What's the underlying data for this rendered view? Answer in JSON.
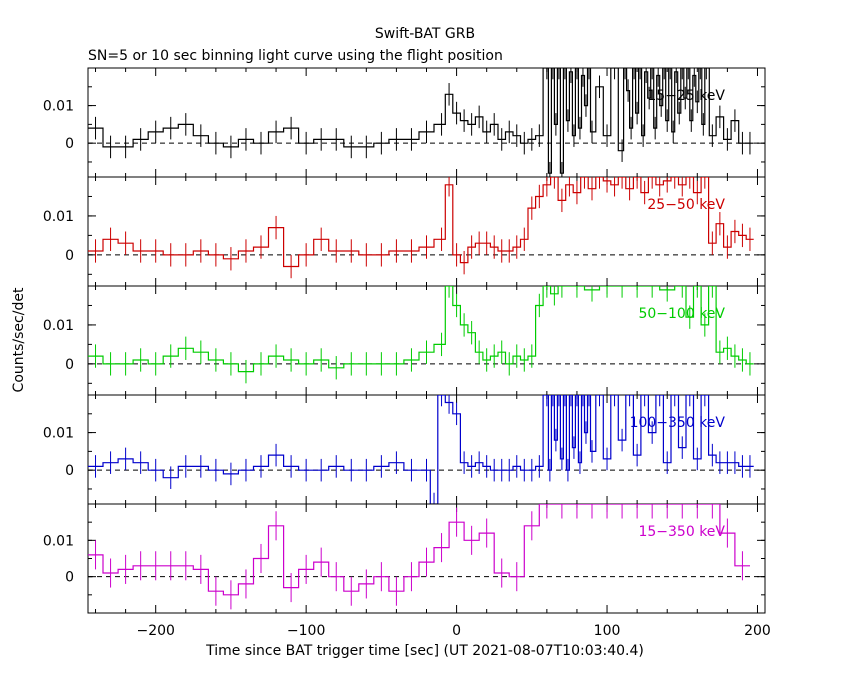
{
  "chart_data": {
    "type": "line",
    "title": "Swift-BAT GRB",
    "subtitle": "SN=5 or 10 sec binning light curve using the flight position",
    "xlabel": "Time since BAT trigger time [sec] (UT 2021-08-07T10:03:40.4)",
    "ylabel": "Counts/sec/det",
    "xlim": [
      -245,
      205
    ],
    "x_ticks": [
      -200,
      -100,
      0,
      100,
      200
    ],
    "x_tick_labels": [
      "−200",
      "−100",
      "0",
      "100",
      "200"
    ],
    "y_ticks": [
      0,
      0.01
    ],
    "y_tick_labels": [
      "0",
      "0.01"
    ],
    "panels": [
      {
        "label": "15−25 keV",
        "color": "#000000",
        "ylim": [
          -0.009,
          0.02
        ],
        "x": [
          -240,
          -230,
          -220,
          -210,
          -200,
          -190,
          -180,
          -170,
          -160,
          -150,
          -140,
          -130,
          -120,
          -110,
          -100,
          -90,
          -80,
          -70,
          -60,
          -50,
          -40,
          -30,
          -20,
          -10,
          -5,
          0,
          5,
          10,
          15,
          20,
          25,
          30,
          35,
          40,
          45,
          50,
          55,
          60,
          62,
          64,
          66,
          68,
          70,
          72,
          74,
          76,
          78,
          80,
          82,
          84,
          86,
          88,
          90,
          95,
          100,
          105,
          110,
          112,
          114,
          116,
          118,
          120,
          122,
          124,
          126,
          128,
          130,
          132,
          134,
          136,
          138,
          140,
          142,
          144,
          146,
          148,
          150,
          152,
          154,
          156,
          158,
          160,
          162,
          164,
          166,
          170,
          175,
          180,
          185,
          190,
          195
        ],
        "values": [
          0.004,
          -0.001,
          -0.001,
          0.001,
          0.003,
          0.004,
          0.005,
          0.002,
          0,
          -0.001,
          0.001,
          0,
          0.003,
          0.004,
          0,
          0.001,
          0.001,
          -0.001,
          -0.001,
          0,
          0.001,
          0.001,
          0.003,
          0.005,
          0.013,
          0.008,
          0.006,
          0.005,
          0.007,
          0.003,
          0.005,
          0.001,
          0.003,
          0.002,
          0,
          0.001,
          0.002,
          0.02,
          -0.008,
          0.02,
          0.005,
          0.02,
          -0.008,
          0.02,
          0.006,
          0.019,
          0.002,
          0.02,
          0.004,
          0.018,
          0.01,
          0.02,
          0.003,
          0.015,
          0.002,
          0.02,
          -0.002,
          0.02,
          0.014,
          0.004,
          0.02,
          0.008,
          0.02,
          0.002,
          0.019,
          0.012,
          0.02,
          0.004,
          0.018,
          0.01,
          0.02,
          0.006,
          0.02,
          0.003,
          0.019,
          0.008,
          0.02,
          0.012,
          0.02,
          0.006,
          0.018,
          0.011,
          0.02,
          0.005,
          0.02,
          0.002,
          0.007,
          0.001,
          0.006,
          0.0,
          0.0
        ],
        "err": 0.003
      },
      {
        "label": "25−50 keV",
        "color": "#cc0000",
        "ylim": [
          -0.008,
          0.02
        ],
        "x": [
          -240,
          -230,
          -220,
          -210,
          -200,
          -190,
          -180,
          -170,
          -160,
          -150,
          -140,
          -130,
          -120,
          -110,
          -100,
          -90,
          -80,
          -70,
          -60,
          -50,
          -40,
          -30,
          -20,
          -10,
          -5,
          0,
          5,
          10,
          15,
          20,
          25,
          30,
          35,
          40,
          45,
          50,
          55,
          60,
          65,
          70,
          75,
          80,
          85,
          90,
          95,
          100,
          105,
          110,
          115,
          120,
          125,
          130,
          135,
          140,
          145,
          150,
          155,
          160,
          165,
          170,
          175,
          180,
          185,
          190,
          195
        ],
        "values": [
          0.001,
          0.004,
          0.003,
          0.001,
          0.001,
          0.0,
          0.0,
          0.001,
          0.0,
          -0.001,
          0.001,
          0.002,
          0.007,
          -0.003,
          0.0,
          0.004,
          0.001,
          0.001,
          0.0,
          0.0,
          0.001,
          0.001,
          0.002,
          0.004,
          0.018,
          0.0,
          -0.002,
          0.002,
          0.003,
          0.003,
          0.002,
          0.001,
          0.001,
          0.002,
          0.004,
          0.012,
          0.015,
          0.018,
          0.02,
          0.014,
          0.018,
          0.016,
          0.02,
          0.017,
          0.02,
          0.019,
          0.018,
          0.02,
          0.017,
          0.02,
          0.016,
          0.02,
          0.018,
          0.019,
          0.02,
          0.018,
          0.02,
          0.016,
          0.02,
          0.003,
          0.008,
          0.002,
          0.006,
          0.005,
          0.004
        ],
        "err": 0.003
      },
      {
        "label": "50−100 keV",
        "color": "#00cc00",
        "ylim": [
          -0.008,
          0.02
        ],
        "x": [
          -240,
          -230,
          -220,
          -210,
          -200,
          -190,
          -180,
          -170,
          -160,
          -150,
          -140,
          -130,
          -120,
          -110,
          -100,
          -90,
          -80,
          -70,
          -60,
          -50,
          -40,
          -30,
          -20,
          -10,
          -5,
          0,
          5,
          10,
          15,
          20,
          25,
          30,
          35,
          40,
          45,
          50,
          55,
          60,
          65,
          70,
          80,
          90,
          100,
          110,
          120,
          130,
          140,
          150,
          155,
          160,
          165,
          170,
          175,
          180,
          185,
          190,
          195
        ],
        "values": [
          0.002,
          0.0,
          0.0,
          0.001,
          0.0,
          0.002,
          0.004,
          0.003,
          0.001,
          0.0,
          -0.002,
          0.0,
          0.002,
          0.001,
          0.0,
          0.001,
          -0.001,
          0.0,
          0.0,
          0.0,
          0.0,
          0.001,
          0.003,
          0.005,
          0.02,
          0.015,
          0.01,
          0.008,
          0.003,
          0.001,
          0.002,
          0.003,
          0.0,
          0.002,
          0.001,
          0.002,
          0.015,
          0.02,
          0.018,
          0.02,
          0.02,
          0.019,
          0.02,
          0.02,
          0.02,
          0.02,
          0.019,
          0.02,
          0.012,
          0.02,
          0.01,
          0.02,
          0.003,
          0.004,
          0.002,
          0.001,
          0.0
        ],
        "err": 0.003
      },
      {
        "label": "100−350 keV",
        "color": "#0000cc",
        "ylim": [
          -0.009,
          0.02
        ],
        "x": [
          -240,
          -230,
          -220,
          -210,
          -200,
          -190,
          -180,
          -170,
          -160,
          -150,
          -140,
          -130,
          -120,
          -110,
          -100,
          -90,
          -80,
          -70,
          -60,
          -50,
          -40,
          -30,
          -20,
          -15,
          -10,
          -5,
          0,
          5,
          10,
          15,
          20,
          25,
          30,
          35,
          40,
          45,
          50,
          55,
          60,
          62,
          64,
          66,
          68,
          70,
          72,
          74,
          76,
          78,
          80,
          82,
          84,
          86,
          88,
          90,
          95,
          100,
          105,
          110,
          115,
          120,
          125,
          130,
          135,
          140,
          145,
          150,
          155,
          160,
          165,
          170,
          175,
          180,
          185,
          190,
          195
        ],
        "values": [
          0.001,
          0.002,
          0.003,
          0.002,
          0.0,
          -0.002,
          0.001,
          0.001,
          0.0,
          -0.001,
          0.0,
          0.001,
          0.004,
          0.001,
          0.0,
          0.0,
          0.001,
          0.0,
          0.0,
          0.001,
          0.002,
          0.0,
          0.0,
          -0.009,
          0.02,
          0.018,
          0.015,
          0.002,
          0.001,
          0.002,
          0.001,
          0.0,
          0.0,
          0.0,
          0.001,
          0.0,
          0.0,
          0.001,
          0.02,
          0.0,
          0.02,
          0.008,
          0.02,
          0.003,
          0.02,
          0.0,
          0.02,
          0.006,
          0.02,
          0.002,
          0.02,
          0.01,
          0.02,
          0.005,
          0.02,
          0.003,
          0.02,
          0.008,
          0.02,
          0.004,
          0.02,
          0.01,
          0.02,
          0.002,
          0.02,
          0.006,
          0.02,
          0.003,
          0.02,
          0.004,
          0.002,
          0.002,
          0.002,
          0.001,
          0.001
        ],
        "err": 0.003
      },
      {
        "label": "15−350 keV",
        "color": "#cc00cc",
        "ylim": [
          -0.01,
          0.02
        ],
        "x": [
          -240,
          -230,
          -220,
          -210,
          -200,
          -190,
          -180,
          -170,
          -160,
          -150,
          -140,
          -130,
          -120,
          -110,
          -100,
          -90,
          -80,
          -70,
          -60,
          -50,
          -40,
          -30,
          -20,
          -10,
          0,
          10,
          20,
          30,
          40,
          50,
          60,
          70,
          80,
          90,
          100,
          110,
          120,
          130,
          140,
          150,
          160,
          170,
          180,
          190
        ],
        "values": [
          0.006,
          0.001,
          0.002,
          0.003,
          0.003,
          0.003,
          0.003,
          0.002,
          -0.004,
          -0.005,
          -0.002,
          0.005,
          0.014,
          -0.003,
          0.002,
          0.004,
          0.0,
          -0.004,
          -0.002,
          0.0,
          -0.004,
          0.0,
          0.004,
          0.008,
          0.015,
          0.01,
          0.012,
          0.001,
          0.0,
          0.014,
          0.02,
          0.02,
          0.02,
          0.02,
          0.02,
          0.02,
          0.02,
          0.02,
          0.02,
          0.02,
          0.02,
          0.02,
          0.012,
          0.003
        ],
        "err": 0.004
      }
    ]
  }
}
